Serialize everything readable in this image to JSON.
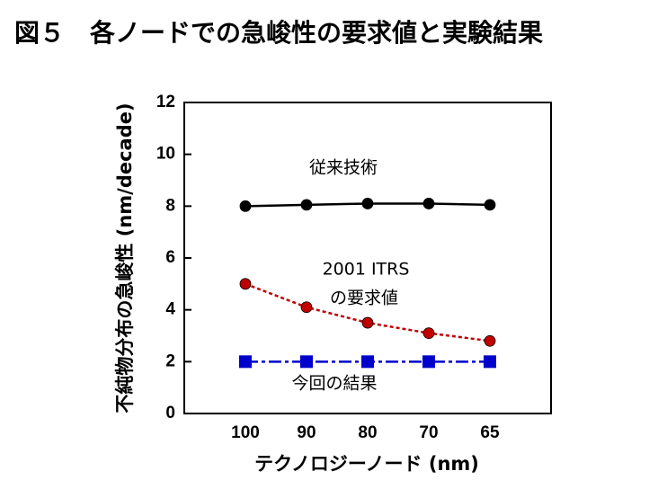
{
  "chart_data": {
    "type": "line",
    "title": "図５　各ノードでの急峻性の要求値と実験結果",
    "x_label": "テクノロジーノード (nm)",
    "y_label": "不純物分布の急峻性 (nm/decade)",
    "categories": [
      "100",
      "90",
      "80",
      "70",
      "65"
    ],
    "series": [
      {
        "name": [
          "従来技術"
        ],
        "color": "#000000",
        "marker": "circle",
        "dash": "solid",
        "values": [
          8.0,
          8.05,
          8.1,
          8.1,
          8.05
        ]
      },
      {
        "name": [
          "2001 ITRS",
          "の要求値"
        ],
        "color": "#c00000",
        "marker": "circle",
        "dash": "dot",
        "values": [
          5.0,
          4.1,
          3.5,
          3.1,
          2.8
        ]
      },
      {
        "name": [
          "今回の結果"
        ],
        "color": "#0000cc",
        "marker": "square",
        "dash": "dashdot",
        "values": [
          2.0,
          2.0,
          2.0,
          2.0,
          2.0
        ]
      }
    ],
    "ylim": [
      0,
      12
    ],
    "yticks": [
      0,
      2,
      4,
      6,
      8,
      10,
      12
    ]
  }
}
